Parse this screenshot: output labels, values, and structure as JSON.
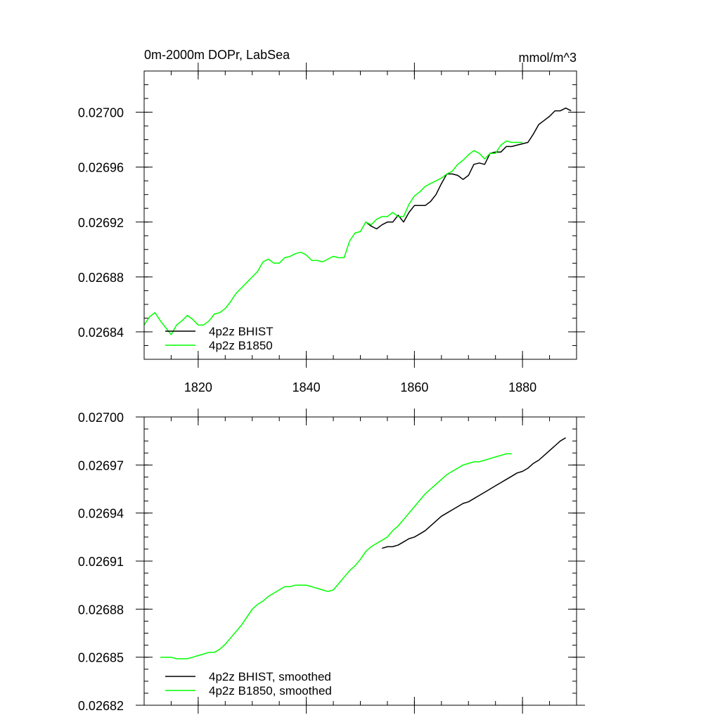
{
  "chart_data": [
    {
      "type": "line",
      "title": "0m-2000m DOPr, LabSea",
      "units_label": "mmol/m^3",
      "xlim": [
        1810,
        1890
      ],
      "ylim": [
        0.02682,
        0.02703
      ],
      "x_ticks": [
        1820,
        1840,
        1860,
        1880
      ],
      "x_tick_labels": [
        "1820",
        "1840",
        "1860",
        "1880"
      ],
      "y_ticks": [
        0.02684,
        0.02688,
        0.02692,
        0.02696,
        0.027
      ],
      "y_tick_labels": [
        "0.02684",
        "0.02688",
        "0.02692",
        "0.02696",
        "0.02700"
      ],
      "legend_position": "bottom-left",
      "series": [
        {
          "name": "4p2z BHIST",
          "color": "#000000",
          "x": [
            1851,
            1852,
            1853,
            1854,
            1855,
            1856,
            1857,
            1858,
            1859,
            1860,
            1861,
            1862,
            1863,
            1864,
            1865,
            1866,
            1867,
            1868,
            1869,
            1870,
            1871,
            1872,
            1873,
            1874,
            1875,
            1876,
            1877,
            1878,
            1879,
            1880,
            1881,
            1882,
            1883,
            1884,
            1885,
            1886,
            1887,
            1888,
            1889
          ],
          "y": [
            0.02692,
            0.026917,
            0.026915,
            0.026918,
            0.02692,
            0.02692,
            0.026925,
            0.02692,
            0.026927,
            0.026932,
            0.026932,
            0.026932,
            0.026935,
            0.02694,
            0.026948,
            0.026955,
            0.026955,
            0.026954,
            0.026951,
            0.026954,
            0.026962,
            0.026963,
            0.026962,
            0.02697,
            0.026971,
            0.026971,
            0.026975,
            0.026975,
            0.026976,
            0.026977,
            0.026978,
            0.026984,
            0.026991,
            0.026994,
            0.026997,
            0.027001,
            0.027001,
            0.027003,
            0.027001
          ]
        },
        {
          "name": "4p2z B1850",
          "color": "#00ff00",
          "x": [
            1810,
            1811,
            1812,
            1813,
            1814,
            1815,
            1816,
            1817,
            1818,
            1819,
            1820,
            1821,
            1822,
            1823,
            1824,
            1825,
            1826,
            1827,
            1828,
            1829,
            1830,
            1831,
            1832,
            1833,
            1834,
            1835,
            1836,
            1837,
            1838,
            1839,
            1840,
            1841,
            1842,
            1843,
            1844,
            1845,
            1846,
            1847,
            1848,
            1849,
            1850,
            1851,
            1852,
            1853,
            1854,
            1855,
            1856,
            1857,
            1858,
            1859,
            1860,
            1861,
            1862,
            1863,
            1864,
            1865,
            1866,
            1867,
            1868,
            1869,
            1870,
            1871,
            1872,
            1873,
            1874,
            1875,
            1876,
            1877,
            1878,
            1879,
            1880
          ],
          "y": [
            0.026845,
            0.026851,
            0.026854,
            0.026848,
            0.026843,
            0.026838,
            0.026845,
            0.026848,
            0.026852,
            0.026849,
            0.026845,
            0.026845,
            0.026848,
            0.026853,
            0.026854,
            0.026857,
            0.026862,
            0.026868,
            0.026872,
            0.026876,
            0.02688,
            0.026884,
            0.026891,
            0.026893,
            0.02689,
            0.02689,
            0.026894,
            0.026895,
            0.026897,
            0.026898,
            0.026896,
            0.026892,
            0.026892,
            0.026891,
            0.026893,
            0.026895,
            0.026894,
            0.026894,
            0.026906,
            0.026912,
            0.026913,
            0.02692,
            0.026918,
            0.026922,
            0.026924,
            0.026924,
            0.026927,
            0.026924,
            0.026924,
            0.026933,
            0.026939,
            0.026942,
            0.026946,
            0.026948,
            0.02695,
            0.026952,
            0.026955,
            0.026957,
            0.026962,
            0.026965,
            0.026969,
            0.026972,
            0.02697,
            0.026966,
            0.02697,
            0.02697,
            0.026976,
            0.026979,
            0.026978,
            0.026978,
            0.026978
          ]
        }
      ]
    },
    {
      "type": "line",
      "xlim": [
        1810,
        1890
      ],
      "ylim": [
        0.02682,
        0.027
      ],
      "x_ticks": [
        1820,
        1840,
        1860,
        1880
      ],
      "y_ticks": [
        0.02682,
        0.02685,
        0.02688,
        0.02691,
        0.02694,
        0.02697,
        0.027
      ],
      "y_tick_labels": [
        "0.02682",
        "0.02685",
        "0.02688",
        "0.02691",
        "0.02694",
        "0.02697",
        "0.02700"
      ],
      "legend_position": "bottom-left",
      "series": [
        {
          "name": "4p2z BHIST, smoothed",
          "color": "#000000",
          "x": [
            1854,
            1855,
            1856,
            1857,
            1858,
            1859,
            1860,
            1861,
            1862,
            1863,
            1864,
            1865,
            1866,
            1867,
            1868,
            1869,
            1870,
            1871,
            1872,
            1873,
            1874,
            1875,
            1876,
            1877,
            1878,
            1879,
            1880,
            1881,
            1882,
            1883,
            1884,
            1885,
            1886,
            1887,
            1888
          ],
          "y": [
            0.026918,
            0.026919,
            0.026919,
            0.02692,
            0.026922,
            0.026924,
            0.026925,
            0.026927,
            0.026929,
            0.026932,
            0.026935,
            0.026938,
            0.02694,
            0.026942,
            0.026944,
            0.026946,
            0.026947,
            0.026949,
            0.026951,
            0.026953,
            0.026955,
            0.026957,
            0.026959,
            0.026961,
            0.026963,
            0.026965,
            0.026966,
            0.026968,
            0.026971,
            0.026973,
            0.026976,
            0.026979,
            0.026982,
            0.026985,
            0.026987
          ]
        },
        {
          "name": "4p2z B1850, smoothed",
          "color": "#00ff00",
          "x": [
            1813,
            1814,
            1815,
            1816,
            1817,
            1818,
            1819,
            1820,
            1821,
            1822,
            1823,
            1824,
            1825,
            1826,
            1827,
            1828,
            1829,
            1830,
            1831,
            1832,
            1833,
            1834,
            1835,
            1836,
            1837,
            1838,
            1839,
            1840,
            1841,
            1842,
            1843,
            1844,
            1845,
            1846,
            1847,
            1848,
            1849,
            1850,
            1851,
            1852,
            1853,
            1854,
            1855,
            1856,
            1857,
            1858,
            1859,
            1860,
            1861,
            1862,
            1863,
            1864,
            1865,
            1866,
            1867,
            1868,
            1869,
            1870,
            1871,
            1872,
            1873,
            1874,
            1875,
            1876,
            1877,
            1878
          ],
          "y": [
            0.02685,
            0.02685,
            0.02685,
            0.026849,
            0.026849,
            0.026849,
            0.02685,
            0.026851,
            0.026852,
            0.026853,
            0.026853,
            0.026855,
            0.026858,
            0.026862,
            0.026866,
            0.02687,
            0.026875,
            0.02688,
            0.026883,
            0.026885,
            0.026888,
            0.02689,
            0.026892,
            0.026894,
            0.026894,
            0.026895,
            0.026895,
            0.026895,
            0.026894,
            0.026893,
            0.026892,
            0.026891,
            0.026892,
            0.026896,
            0.0269,
            0.026904,
            0.026907,
            0.026911,
            0.026916,
            0.026919,
            0.026921,
            0.026923,
            0.026925,
            0.026929,
            0.026932,
            0.026936,
            0.02694,
            0.026944,
            0.026948,
            0.026952,
            0.026955,
            0.026958,
            0.026961,
            0.026964,
            0.026966,
            0.026968,
            0.02697,
            0.026971,
            0.026972,
            0.026972,
            0.026973,
            0.026974,
            0.026975,
            0.026976,
            0.026977,
            0.026977
          ]
        }
      ]
    }
  ]
}
